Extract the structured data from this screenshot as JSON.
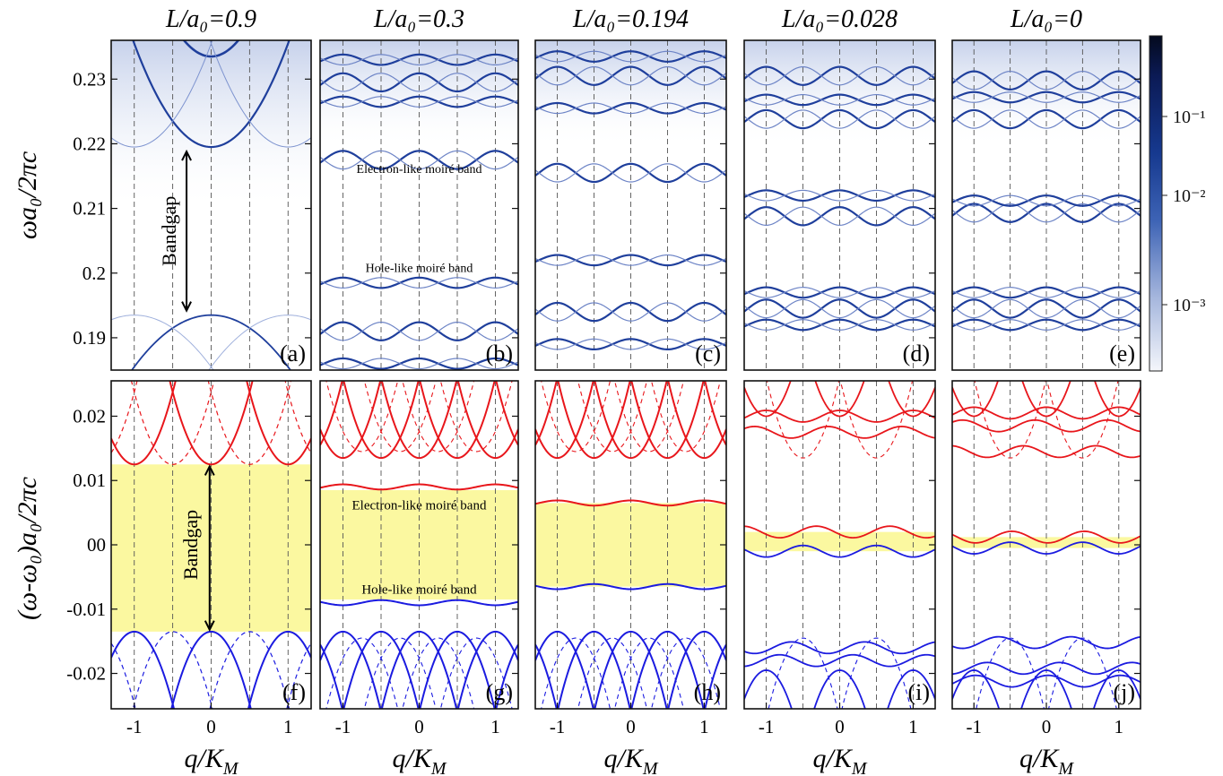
{
  "colors": {
    "band_blue": "#1f3f9c",
    "band_red": "#e8161b",
    "gap_yellow": "#fbf8a0",
    "line_blue": "#1b1be0",
    "cbar_light": "#f4f6fb",
    "cbar_mid": "#1d48a8",
    "cbar_dark": "#040a1e"
  },
  "ylabel_top": "ωa₀/2πc",
  "ylabel_bottom": "(ω-ω₀)a₀/2πc",
  "colorbar": {
    "scale": "log",
    "ticks": [
      "10⁻¹",
      "10⁻²",
      "10⁻³"
    ]
  },
  "chart_data": [
    {
      "type": "heatmap",
      "panel": "(a)",
      "title": "L/a₀=0.9",
      "ylim": [
        0.185,
        0.236
      ],
      "yticks": [
        "0.23",
        "0.22",
        "0.21",
        "0.2",
        "0.19"
      ],
      "xlim": [
        -1.3,
        1.3
      ],
      "bands": [
        0.1935,
        0.2195,
        0.2335
      ],
      "labels": [
        {
          "text": "Bandgap"
        }
      ]
    },
    {
      "type": "heatmap",
      "panel": "(b)",
      "title": "L/a₀=0.3",
      "ylim": [
        0.185,
        0.236
      ],
      "xlim": [
        -1.3,
        1.3
      ],
      "bands": [
        0.186,
        0.191,
        0.1985,
        0.2175,
        0.2265,
        0.2295,
        0.233
      ],
      "labels": [
        {
          "text": "Electron-like moiré band"
        },
        {
          "text": "Hole-like moiré band"
        }
      ]
    },
    {
      "type": "heatmap",
      "panel": "(c)",
      "title": "L/a₀=0.194",
      "ylim": [
        0.185,
        0.236
      ],
      "xlim": [
        -1.3,
        1.3
      ],
      "bands": [
        0.189,
        0.194,
        0.202,
        0.2155,
        0.2255,
        0.2305,
        0.2335
      ]
    },
    {
      "type": "heatmap",
      "panel": "(d)",
      "title": "L/a₀=0.028",
      "ylim": [
        0.185,
        0.236
      ],
      "xlim": [
        -1.3,
        1.3
      ],
      "bands": [
        0.192,
        0.1945,
        0.197,
        0.2088,
        0.212,
        0.2238,
        0.2268,
        0.2305
      ]
    },
    {
      "type": "heatmap",
      "panel": "(e)",
      "title": "L/a₀=0",
      "ylim": [
        0.185,
        0.236
      ],
      "xlim": [
        -1.3,
        1.3
      ],
      "bands": [
        0.192,
        0.1945,
        0.197,
        0.2093,
        0.2112,
        0.2238,
        0.2272,
        0.2298
      ]
    },
    {
      "type": "line",
      "panel": "(f)",
      "xlim": [
        -1.3,
        1.3
      ],
      "xticks": [
        "-1",
        "0",
        "1"
      ],
      "xlabel": "q/K_M",
      "ylim": [
        -0.0255,
        0.0255
      ],
      "yticks": [
        "0.02",
        "0.01",
        "00",
        "-0.01",
        "-0.02"
      ],
      "gap": [
        -0.0135,
        0.0125
      ],
      "labels": [
        {
          "text": "Bandgap"
        }
      ],
      "upper_band_bottom": 0.0125,
      "lower_band_top": -0.0135
    },
    {
      "type": "line",
      "panel": "(g)",
      "xlim": [
        -1.3,
        1.3
      ],
      "xticks": [
        "-1",
        "0",
        "1"
      ],
      "xlabel": "q/K_M",
      "ylim": [
        -0.0255,
        0.0255
      ],
      "gap": [
        -0.0085,
        0.0085
      ],
      "moire_bands": [
        0.009,
        -0.009
      ],
      "labels": [
        {
          "text": "Electron-like moiré band"
        },
        {
          "text": "Hole-like moiré band"
        }
      ]
    },
    {
      "type": "line",
      "panel": "(h)",
      "xlim": [
        -1.3,
        1.3
      ],
      "xticks": [
        "-1",
        "0",
        "1"
      ],
      "xlabel": "q/K_M",
      "ylim": [
        -0.0255,
        0.0255
      ],
      "gap": [
        -0.0065,
        0.0065
      ],
      "moire_bands": [
        0.0065,
        -0.0065
      ]
    },
    {
      "type": "line",
      "panel": "(i)",
      "xlim": [
        -1.3,
        1.3
      ],
      "xticks": [
        "-1",
        "0",
        "1"
      ],
      "xlabel": "q/K_M",
      "ylim": [
        -0.0255,
        0.0255
      ],
      "gap": [
        -0.001,
        0.002
      ],
      "flat_red": [
        0.02,
        0.0175,
        0.002
      ],
      "flat_blue": [
        -0.001,
        -0.016,
        -0.018
      ]
    },
    {
      "type": "line",
      "panel": "(j)",
      "xlim": [
        -1.3,
        1.3
      ],
      "xticks": [
        "-1",
        "0",
        "1"
      ],
      "xlabel": "q/K_M",
      "ylim": [
        -0.0255,
        0.0255
      ],
      "gap": [
        -0.0005,
        0.0012
      ],
      "flat_red": [
        0.0205,
        0.0185,
        0.0145,
        0.0012
      ],
      "flat_blue": [
        -0.0005,
        -0.0152,
        -0.0192,
        -0.0212
      ]
    }
  ]
}
